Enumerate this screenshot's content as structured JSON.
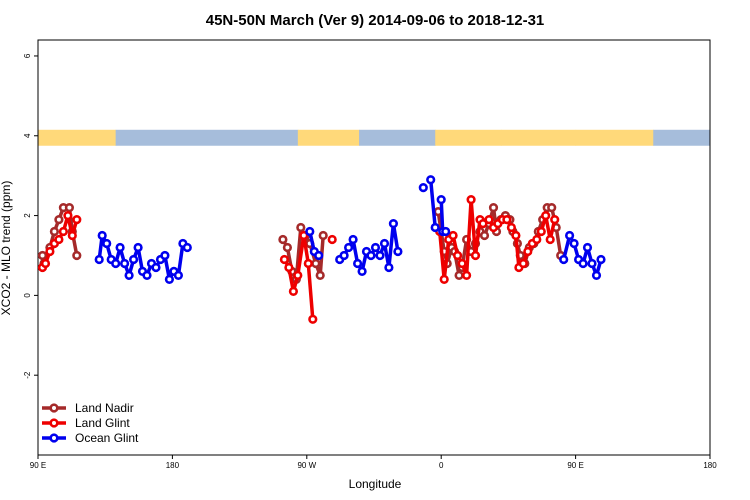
{
  "chart_data": {
    "type": "line",
    "title": "45N-50N March (Ver 9)   2014-09-06 to 2018-12-31",
    "xlabel": "Longitude",
    "ylabel": "XCO2 - MLO trend (ppm)",
    "xlim": [
      90,
      450
    ],
    "ylim": [
      -4,
      6.4
    ],
    "x_ticks": [
      {
        "value": 90,
        "label": "90 E"
      },
      {
        "value": 180,
        "label": "180"
      },
      {
        "value": 270,
        "label": "90 W"
      },
      {
        "value": 360,
        "label": "0"
      },
      {
        "value": 450,
        "label": "90 E"
      },
      {
        "value": 540,
        "label": "180"
      }
    ],
    "y_ticks": [
      {
        "value": -2,
        "label": "-2"
      },
      {
        "value": 0,
        "label": "0"
      },
      {
        "value": 2,
        "label": "2"
      },
      {
        "value": 4,
        "label": "4"
      },
      {
        "value": 6,
        "label": "6"
      }
    ],
    "x_axis_max": 540,
    "land_band": {
      "y_range": [
        3.75,
        4.15
      ],
      "land_color": "#FFD97A",
      "ocean_color": "#A6BDDB",
      "segments": [
        {
          "type": "land",
          "start": 90,
          "end": 142
        },
        {
          "type": "ocean",
          "start": 142,
          "end": 264
        },
        {
          "type": "land",
          "start": 264,
          "end": 305
        },
        {
          "type": "ocean",
          "start": 305,
          "end": 356
        },
        {
          "type": "land",
          "start": 356,
          "end": 400
        },
        {
          "type": "land",
          "start": 400,
          "end": 450
        },
        {
          "type": "land",
          "start": 450,
          "end": 502
        },
        {
          "type": "ocean",
          "start": 502,
          "end": 540
        }
      ]
    },
    "series": [
      {
        "name": "Land Nadir",
        "color": "#A52A2A",
        "segments": [
          [
            [
              93,
              1.0
            ],
            [
              94,
              0.8
            ],
            [
              98,
              1.2
            ],
            [
              101,
              1.6
            ],
            [
              104,
              1.9
            ],
            [
              107,
              2.2
            ],
            [
              111,
              2.2
            ],
            [
              113,
              1.6
            ],
            [
              116,
              1.0
            ]
          ],
          [
            [
              254,
              1.4
            ],
            [
              257,
              1.2
            ],
            [
              260,
              0.6
            ],
            [
              263,
              0.4
            ],
            [
              266,
              1.7
            ],
            [
              269,
              1.5
            ],
            [
              272,
              1.3
            ],
            [
              276,
              0.8
            ],
            [
              279,
              0.5
            ],
            [
              281,
              1.5
            ]
          ],
          [
            [
              358,
              2.1
            ],
            [
              360,
              1.6
            ],
            [
              362,
              1.1
            ],
            [
              364,
              0.8
            ],
            [
              367,
              1.2
            ],
            [
              369,
              1.1
            ],
            [
              372,
              0.5
            ],
            [
              374,
              0.7
            ],
            [
              377,
              1.4
            ],
            [
              380,
              1.1
            ],
            [
              383,
              1.3
            ],
            [
              386,
              1.6
            ],
            [
              389,
              1.5
            ],
            [
              392,
              1.8
            ],
            [
              395,
              2.2
            ],
            [
              397,
              1.6
            ],
            [
              400,
              1.9
            ],
            [
              403,
              2.0
            ],
            [
              406,
              1.9
            ],
            [
              408,
              1.6
            ],
            [
              411,
              1.3
            ],
            [
              413,
              1.0
            ],
            [
              416,
              0.8
            ],
            [
              419,
              1.2
            ],
            [
              422,
              1.3
            ],
            [
              425,
              1.6
            ],
            [
              428,
              1.9
            ],
            [
              431,
              2.2
            ],
            [
              434,
              2.2
            ],
            [
              437,
              1.7
            ],
            [
              440,
              1.0
            ]
          ]
        ]
      },
      {
        "name": "Land Glint",
        "color": "#EE0000",
        "segments": [
          [
            [
              93,
              0.7
            ],
            [
              95,
              0.8
            ],
            [
              98,
              1.1
            ],
            [
              101,
              1.3
            ],
            [
              104,
              1.4
            ],
            [
              107,
              1.6
            ],
            [
              110,
              2.0
            ],
            [
              113,
              1.5
            ],
            [
              116,
              1.9
            ]
          ],
          [
            [
              255,
              0.9
            ],
            [
              258,
              0.7
            ],
            [
              261,
              0.1
            ],
            [
              264,
              0.5
            ],
            [
              268,
              1.5
            ],
            [
              271,
              0.8
            ],
            [
              274,
              -0.6
            ]
          ],
          [
            [
              287,
              1.4
            ]
          ],
          [
            [
              359,
              1.6
            ],
            [
              362,
              0.4
            ],
            [
              365,
              1.4
            ],
            [
              368,
              1.5
            ],
            [
              371,
              1.0
            ],
            [
              374,
              0.8
            ],
            [
              377,
              0.5
            ],
            [
              380,
              2.4
            ],
            [
              383,
              1.0
            ],
            [
              386,
              1.9
            ],
            [
              388,
              1.8
            ],
            [
              392,
              1.9
            ],
            [
              395,
              1.7
            ],
            [
              398,
              1.8
            ],
            [
              401,
              1.9
            ],
            [
              404,
              1.9
            ],
            [
              407,
              1.7
            ],
            [
              410,
              1.5
            ],
            [
              412,
              0.7
            ],
            [
              415,
              0.8
            ],
            [
              418,
              1.1
            ],
            [
              421,
              1.3
            ],
            [
              424,
              1.4
            ],
            [
              427,
              1.6
            ],
            [
              430,
              2.0
            ],
            [
              433,
              1.4
            ],
            [
              436,
              1.9
            ]
          ]
        ]
      },
      {
        "name": "Ocean Glint",
        "color": "#0000EE",
        "segments": [
          [
            [
              131,
              0.9
            ],
            [
              133,
              1.5
            ],
            [
              136,
              1.3
            ],
            [
              139,
              0.9
            ],
            [
              142,
              0.8
            ],
            [
              145,
              1.2
            ],
            [
              148,
              0.8
            ],
            [
              151,
              0.5
            ],
            [
              154,
              0.9
            ],
            [
              157,
              1.2
            ],
            [
              160,
              0.6
            ],
            [
              163,
              0.5
            ],
            [
              166,
              0.8
            ],
            [
              169,
              0.7
            ],
            [
              172,
              0.9
            ],
            [
              175,
              1.0
            ],
            [
              178,
              0.4
            ],
            [
              181,
              0.6
            ],
            [
              184,
              0.5
            ],
            [
              187,
              1.3
            ],
            [
              190,
              1.2
            ]
          ],
          [
            [
              272,
              1.6
            ],
            [
              275,
              1.1
            ],
            [
              278,
              1.0
            ]
          ],
          [
            [
              292,
              0.9
            ],
            [
              295,
              1.0
            ],
            [
              298,
              1.2
            ],
            [
              301,
              1.4
            ],
            [
              304,
              0.8
            ],
            [
              307,
              0.6
            ],
            [
              310,
              1.1
            ],
            [
              313,
              1.0
            ],
            [
              316,
              1.2
            ],
            [
              319,
              1.0
            ],
            [
              322,
              1.3
            ],
            [
              325,
              0.7
            ],
            [
              328,
              1.8
            ],
            [
              331,
              1.1
            ]
          ],
          [
            [
              348,
              2.7
            ]
          ],
          [
            [
              353,
              2.9
            ],
            [
              356,
              1.7
            ]
          ],
          [
            [
              360,
              2.4
            ],
            [
              361,
              1.6
            ],
            [
              363,
              1.6
            ]
          ],
          [
            [
              442,
              0.9
            ],
            [
              446,
              1.5
            ],
            [
              449,
              1.3
            ],
            [
              452,
              0.9
            ],
            [
              455,
              0.8
            ],
            [
              458,
              1.2
            ],
            [
              461,
              0.8
            ],
            [
              464,
              0.5
            ],
            [
              467,
              0.9
            ]
          ]
        ]
      }
    ],
    "legend": {
      "placement": "bottom-left",
      "entries": [
        {
          "label": "Land Nadir",
          "color": "#A52A2A"
        },
        {
          "label": "Land Glint",
          "color": "#EE0000"
        },
        {
          "label": "Ocean Glint",
          "color": "#0000EE"
        }
      ]
    },
    "grid": false
  }
}
